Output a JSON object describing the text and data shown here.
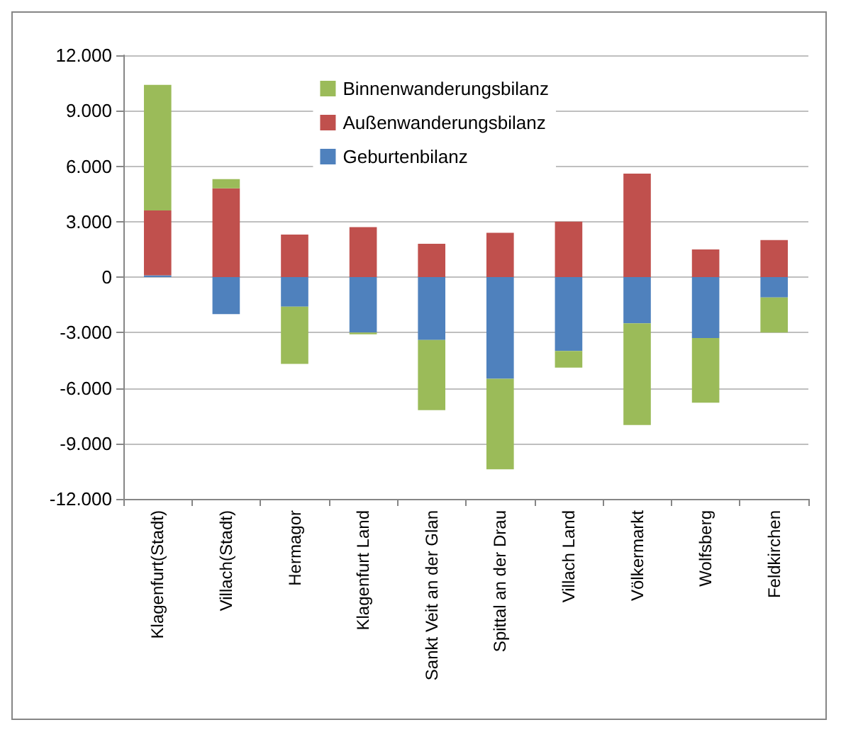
{
  "chart_data": {
    "type": "bar",
    "stacked": true,
    "grid": "y",
    "legend": "top right",
    "categories": [
      "Klagenfurt(Stadt)",
      "Villach(Stadt)",
      "Hermagor",
      "Klagenfurt Land",
      "Sankt Veit an der Glan",
      "Spittal an der Drau",
      "Villach Land",
      "Völkermarkt",
      "Wolfsberg",
      "Feldkirchen"
    ],
    "series": [
      {
        "name": "Geburtenbilanz",
        "color": "#4f81bd",
        "values": [
          100,
          -2000,
          -1600,
          -3000,
          -3400,
          -5500,
          -4000,
          -2500,
          -3300,
          -1100
        ]
      },
      {
        "name": "Außenwanderungsbilanz",
        "color": "#c0504d",
        "values": [
          3500,
          4800,
          2300,
          2700,
          1800,
          2400,
          3000,
          5600,
          1500,
          2000
        ]
      },
      {
        "name": "Binnenwanderungsbilanz",
        "color": "#9bbb59",
        "values": [
          6800,
          500,
          -3100,
          -100,
          -3800,
          -4900,
          -900,
          -5500,
          -3500,
          -1900
        ]
      }
    ],
    "ylim": [
      -12000,
      12000
    ],
    "yticks": [
      {
        "value": -12000,
        "label": "-12.000"
      },
      {
        "value": -9000,
        "label": "-9.000"
      },
      {
        "value": -6000,
        "label": "-6.000"
      },
      {
        "value": -3000,
        "label": "-3.000"
      },
      {
        "value": 0,
        "label": "0"
      },
      {
        "value": 3000,
        "label": "3.000"
      },
      {
        "value": 6000,
        "label": "6.000"
      },
      {
        "value": 9000,
        "label": "9.000"
      },
      {
        "value": 12000,
        "label": "12.000"
      }
    ]
  }
}
